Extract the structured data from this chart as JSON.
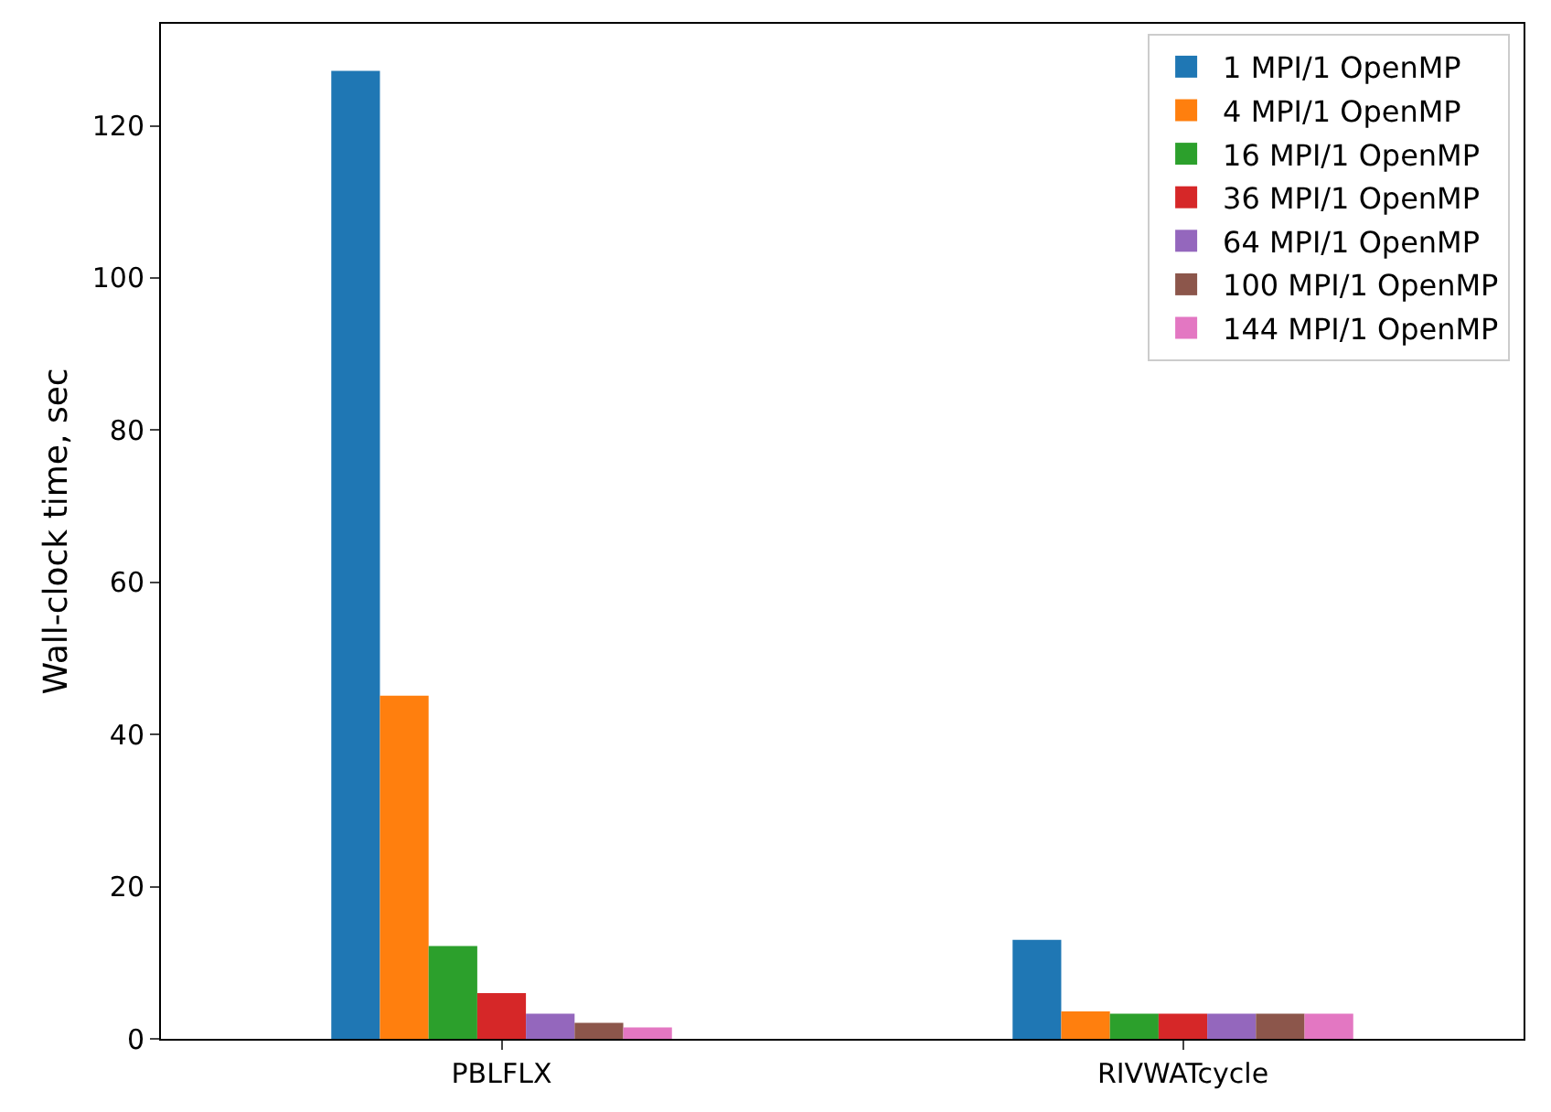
{
  "chart_data": {
    "type": "bar",
    "ylabel": "Wall-clock time, sec",
    "categories": [
      "PBLFLX",
      "RIVWATcycle"
    ],
    "series": [
      {
        "name": "1 MPI/1 OpenMP",
        "color": "#1f77b4",
        "values": [
          127.2,
          13.0
        ]
      },
      {
        "name": "4 MPI/1 OpenMP",
        "color": "#ff7f0e",
        "values": [
          45.1,
          3.6
        ]
      },
      {
        "name": "16 MPI/1 OpenMP",
        "color": "#2ca02c",
        "values": [
          12.2,
          3.3
        ]
      },
      {
        "name": "36 MPI/1 OpenMP",
        "color": "#d62728",
        "values": [
          6.0,
          3.3
        ]
      },
      {
        "name": "64 MPI/1 OpenMP",
        "color": "#9467bd",
        "values": [
          3.3,
          3.3
        ]
      },
      {
        "name": "100 MPI/1 OpenMP",
        "color": "#8c564b",
        "values": [
          2.1,
          3.3
        ]
      },
      {
        "name": "144 MPI/1 OpenMP",
        "color": "#e377c2",
        "values": [
          1.5,
          3.3
        ]
      }
    ],
    "ylim": [
      0,
      133.4
    ],
    "yticks": [
      0,
      20,
      40,
      60,
      80,
      100,
      120
    ],
    "legend": "top right"
  }
}
